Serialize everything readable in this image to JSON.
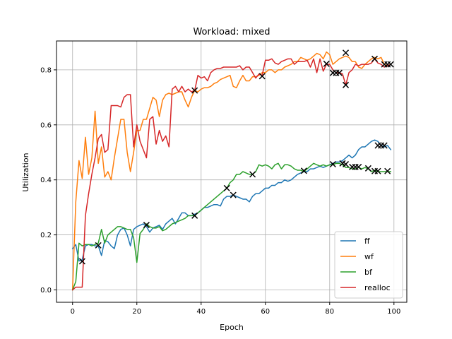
{
  "chart_data": {
    "type": "line",
    "title": "Workload: mixed",
    "xlabel": "Epoch",
    "ylabel": "Utilization",
    "xlim": [
      -5,
      104
    ],
    "ylim": [
      -0.045,
      0.905
    ],
    "xticks": [
      0,
      20,
      40,
      60,
      80,
      100
    ],
    "xtick_labels": [
      "0",
      "20",
      "40",
      "60",
      "80",
      "100"
    ],
    "yticks": [
      0.0,
      0.2,
      0.4,
      0.6,
      0.8
    ],
    "ytick_labels": [
      "0.0",
      "0.2",
      "0.4",
      "0.6",
      "0.8"
    ],
    "grid": true,
    "legend_position": "lower-right",
    "x": [
      0,
      1,
      2,
      3,
      4,
      5,
      6,
      7,
      8,
      9,
      10,
      11,
      12,
      13,
      14,
      15,
      16,
      17,
      18,
      19,
      20,
      21,
      22,
      23,
      24,
      25,
      26,
      27,
      28,
      29,
      30,
      31,
      32,
      33,
      34,
      35,
      36,
      37,
      38,
      39,
      40,
      41,
      42,
      43,
      44,
      45,
      46,
      47,
      48,
      49,
      50,
      51,
      52,
      53,
      54,
      55,
      56,
      57,
      58,
      59,
      60,
      61,
      62,
      63,
      64,
      65,
      66,
      67,
      68,
      69,
      70,
      71,
      72,
      73,
      74,
      75,
      76,
      77,
      78,
      79,
      80,
      81,
      82,
      83,
      84,
      85,
      86,
      87,
      88,
      89,
      90,
      91,
      92,
      93,
      94,
      95,
      96,
      97,
      98,
      99
    ],
    "series": [
      {
        "name": "ff",
        "color": "#1f77b4",
        "values": [
          0.15,
          0.165,
          0.105,
          0.11,
          0.16,
          0.165,
          0.165,
          0.16,
          0.16,
          0.125,
          0.18,
          0.175,
          0.16,
          0.15,
          0.2,
          0.22,
          0.225,
          0.2,
          0.16,
          0.22,
          0.23,
          0.235,
          0.24,
          0.23,
          0.21,
          0.225,
          0.23,
          0.235,
          0.22,
          0.24,
          0.25,
          0.26,
          0.24,
          0.26,
          0.28,
          0.28,
          0.27,
          0.27,
          0.275,
          0.28,
          0.29,
          0.3,
          0.3,
          0.305,
          0.31,
          0.31,
          0.305,
          0.33,
          0.34,
          0.34,
          0.345,
          0.34,
          0.335,
          0.33,
          0.33,
          0.32,
          0.34,
          0.35,
          0.35,
          0.36,
          0.37,
          0.37,
          0.38,
          0.38,
          0.39,
          0.39,
          0.4,
          0.395,
          0.4,
          0.41,
          0.42,
          0.425,
          0.43,
          0.43,
          0.44,
          0.44,
          0.445,
          0.45,
          0.445,
          0.45,
          0.455,
          0.46,
          0.465,
          0.465,
          0.47,
          0.48,
          0.49,
          0.48,
          0.49,
          0.51,
          0.52,
          0.52,
          0.53,
          0.54,
          0.545,
          0.54,
          0.525,
          0.52,
          0.525,
          0.51
        ]
      },
      {
        "name": "wf",
        "color": "#ff7f0e",
        "values": [
          0.0,
          0.32,
          0.47,
          0.405,
          0.555,
          0.42,
          0.48,
          0.65,
          0.46,
          0.52,
          0.41,
          0.43,
          0.4,
          0.48,
          0.55,
          0.62,
          0.62,
          0.5,
          0.43,
          0.5,
          0.58,
          0.58,
          0.62,
          0.62,
          0.66,
          0.7,
          0.69,
          0.63,
          0.69,
          0.71,
          0.715,
          0.71,
          0.715,
          0.72,
          0.72,
          0.69,
          0.665,
          0.7,
          0.725,
          0.72,
          0.73,
          0.735,
          0.735,
          0.74,
          0.75,
          0.755,
          0.765,
          0.77,
          0.775,
          0.78,
          0.74,
          0.735,
          0.76,
          0.78,
          0.76,
          0.76,
          0.775,
          0.775,
          0.78,
          0.79,
          0.79,
          0.8,
          0.8,
          0.79,
          0.8,
          0.8,
          0.81,
          0.815,
          0.82,
          0.83,
          0.83,
          0.845,
          0.84,
          0.835,
          0.84,
          0.85,
          0.86,
          0.855,
          0.84,
          0.865,
          0.855,
          0.82,
          0.83,
          0.84,
          0.845,
          0.85,
          0.845,
          0.83,
          0.83,
          0.81,
          0.805,
          0.82,
          0.83,
          0.84,
          0.845,
          0.84,
          0.845,
          0.82,
          0.815,
          0.82
        ]
      },
      {
        "name": "bf",
        "color": "#2ca02c",
        "values": [
          0.0,
          0.03,
          0.17,
          0.16,
          0.165,
          0.165,
          0.16,
          0.165,
          0.17,
          0.22,
          0.17,
          0.2,
          0.21,
          0.22,
          0.23,
          0.23,
          0.225,
          0.22,
          0.22,
          0.19,
          0.1,
          0.205,
          0.22,
          0.24,
          0.23,
          0.225,
          0.225,
          0.23,
          0.215,
          0.22,
          0.23,
          0.24,
          0.245,
          0.25,
          0.255,
          0.26,
          0.27,
          0.27,
          0.27,
          0.28,
          0.29,
          0.3,
          0.31,
          0.32,
          0.33,
          0.34,
          0.35,
          0.36,
          0.37,
          0.39,
          0.4,
          0.42,
          0.42,
          0.43,
          0.425,
          0.42,
          0.42,
          0.43,
          0.455,
          0.45,
          0.455,
          0.45,
          0.44,
          0.455,
          0.46,
          0.44,
          0.455,
          0.455,
          0.45,
          0.44,
          0.435,
          0.435,
          0.43,
          0.44,
          0.45,
          0.46,
          0.455,
          0.45,
          0.455,
          0.45,
          0.455,
          0.455,
          0.46,
          0.46,
          0.455,
          0.445,
          0.445,
          0.44,
          0.44,
          0.445,
          0.44,
          0.445,
          0.44,
          0.43,
          0.435,
          0.43,
          0.43,
          0.43,
          0.43,
          0.43
        ]
      },
      {
        "name": "realloc",
        "color": "#d62728",
        "values": [
          0.0,
          0.01,
          0.01,
          0.01,
          0.27,
          0.35,
          0.42,
          0.48,
          0.55,
          0.565,
          0.5,
          0.51,
          0.67,
          0.67,
          0.67,
          0.665,
          0.7,
          0.71,
          0.71,
          0.52,
          0.6,
          0.54,
          0.51,
          0.48,
          0.62,
          0.63,
          0.53,
          0.58,
          0.54,
          0.56,
          0.52,
          0.73,
          0.74,
          0.72,
          0.74,
          0.72,
          0.73,
          0.72,
          0.725,
          0.78,
          0.77,
          0.775,
          0.76,
          0.79,
          0.8,
          0.805,
          0.805,
          0.81,
          0.81,
          0.81,
          0.81,
          0.81,
          0.815,
          0.8,
          0.81,
          0.81,
          0.79,
          0.77,
          0.785,
          0.78,
          0.835,
          0.835,
          0.84,
          0.825,
          0.82,
          0.83,
          0.835,
          0.84,
          0.84,
          0.82,
          0.83,
          0.83,
          0.83,
          0.835,
          0.81,
          0.84,
          0.79,
          0.84,
          0.795,
          0.82,
          0.82,
          0.8,
          0.79,
          0.79,
          0.785,
          0.745,
          0.79,
          0.8,
          0.82,
          0.815,
          0.82,
          0.82,
          0.82,
          0.825,
          0.84,
          0.825,
          0.82,
          0.81,
          0.815,
          0.82
        ]
      }
    ],
    "markers": [
      {
        "x": 3,
        "y": 0.104
      },
      {
        "x": 8,
        "y": 0.162
      },
      {
        "x": 23,
        "y": 0.236
      },
      {
        "x": 38,
        "y": 0.27
      },
      {
        "x": 48,
        "y": 0.37
      },
      {
        "x": 50,
        "y": 0.345
      },
      {
        "x": 56,
        "y": 0.42
      },
      {
        "x": 72,
        "y": 0.433
      },
      {
        "x": 81,
        "y": 0.457
      },
      {
        "x": 84,
        "y": 0.46
      },
      {
        "x": 85,
        "y": 0.457
      },
      {
        "x": 87,
        "y": 0.447
      },
      {
        "x": 88,
        "y": 0.447
      },
      {
        "x": 89,
        "y": 0.447
      },
      {
        "x": 92,
        "y": 0.442
      },
      {
        "x": 94,
        "y": 0.432
      },
      {
        "x": 95,
        "y": 0.432
      },
      {
        "x": 98,
        "y": 0.432
      },
      {
        "x": 95,
        "y": 0.525
      },
      {
        "x": 96,
        "y": 0.525
      },
      {
        "x": 97,
        "y": 0.525
      },
      {
        "x": 38,
        "y": 0.725
      },
      {
        "x": 59,
        "y": 0.777
      },
      {
        "x": 79,
        "y": 0.822
      },
      {
        "x": 81,
        "y": 0.789
      },
      {
        "x": 82,
        "y": 0.789
      },
      {
        "x": 83,
        "y": 0.789
      },
      {
        "x": 85,
        "y": 0.862
      },
      {
        "x": 85,
        "y": 0.745
      },
      {
        "x": 94,
        "y": 0.84
      },
      {
        "x": 97,
        "y": 0.82
      },
      {
        "x": 98,
        "y": 0.82
      },
      {
        "x": 99,
        "y": 0.82
      }
    ]
  }
}
